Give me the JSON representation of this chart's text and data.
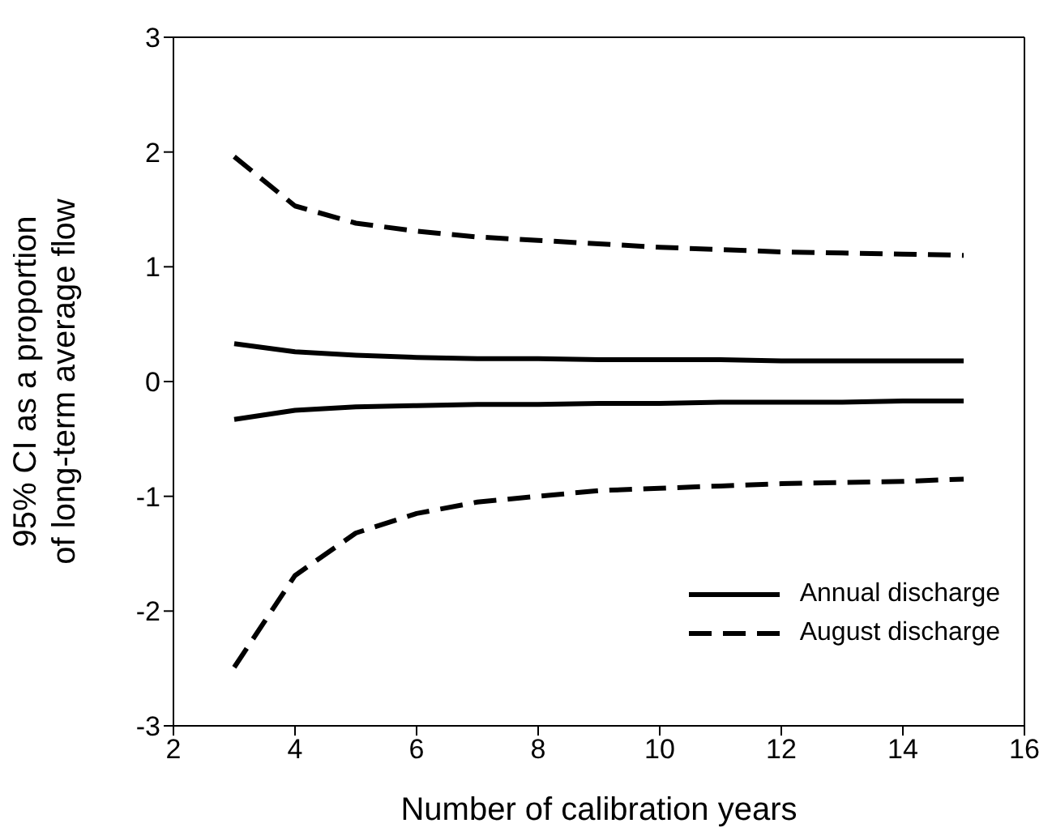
{
  "chart_data": {
    "type": "line",
    "xlabel": "Number of calibration years",
    "ylabel": "95% CI as a proportion of long-term average flow",
    "x": [
      3,
      4,
      5,
      6,
      7,
      8,
      9,
      10,
      11,
      12,
      13,
      14,
      15
    ],
    "series": [
      {
        "name": "Annual discharge",
        "color": "#000000",
        "line_style": "solid",
        "values": [
          0.33,
          0.26,
          0.23,
          0.21,
          0.2,
          0.2,
          0.19,
          0.19,
          0.19,
          0.18,
          0.18,
          0.18,
          0.18
        ]
      },
      {
        "color": "#000000",
        "line_style": "solid",
        "values": [
          -0.33,
          -0.25,
          -0.22,
          -0.21,
          -0.2,
          -0.2,
          -0.19,
          -0.19,
          -0.18,
          -0.18,
          -0.18,
          -0.17,
          -0.17
        ]
      },
      {
        "name": "August discharge",
        "color": "#000000",
        "line_style": "dashed",
        "values": [
          1.96,
          1.53,
          1.38,
          1.31,
          1.26,
          1.23,
          1.2,
          1.17,
          1.15,
          1.13,
          1.12,
          1.11,
          1.1
        ]
      },
      {
        "color": "#000000",
        "line_style": "dashed",
        "values": [
          -2.49,
          -1.69,
          -1.32,
          -1.15,
          -1.05,
          -1.0,
          -0.95,
          -0.93,
          -0.91,
          -0.89,
          -0.88,
          -0.87,
          -0.85
        ]
      }
    ],
    "xlim": [
      2,
      16
    ],
    "xticks": [
      2,
      4,
      6,
      8,
      10,
      12,
      14,
      16
    ],
    "ylim": [
      -3,
      3
    ],
    "yticks": [
      -3,
      -2,
      -1,
      0,
      1,
      2,
      3
    ],
    "grid": false,
    "legend": "bottom right",
    "marker": "none"
  }
}
